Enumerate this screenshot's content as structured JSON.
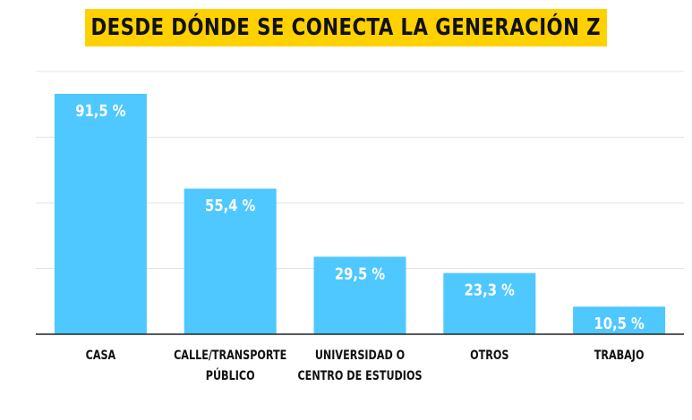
{
  "title": "DESDE DÓNDE SE CONECTA LA GENERACIÓN Z",
  "colors": {
    "bar": "#4FC8FF",
    "title_bg": "#FFD100",
    "grid": "#e4e4e4",
    "axis": "#222222"
  },
  "chart_data": {
    "type": "bar",
    "title": "DESDE DÓNDE SE CONECTA LA GENERACIÓN Z",
    "categories": [
      [
        "CASA"
      ],
      [
        "CALLE/TRANSPORTE",
        "PÚBLICO"
      ],
      [
        "UNIVERSIDAD O",
        "CENTRO DE ESTUDIOS"
      ],
      [
        "OTROS"
      ],
      [
        "TRABAJO"
      ]
    ],
    "values": [
      91.5,
      55.4,
      29.5,
      23.3,
      10.5
    ],
    "value_labels": [
      "91,5 %",
      "55,4 %",
      "29,5 %",
      "23,3 %",
      "10,5 %"
    ],
    "ylim": [
      0,
      100
    ],
    "grid": true,
    "xlabel": "",
    "ylabel": ""
  }
}
